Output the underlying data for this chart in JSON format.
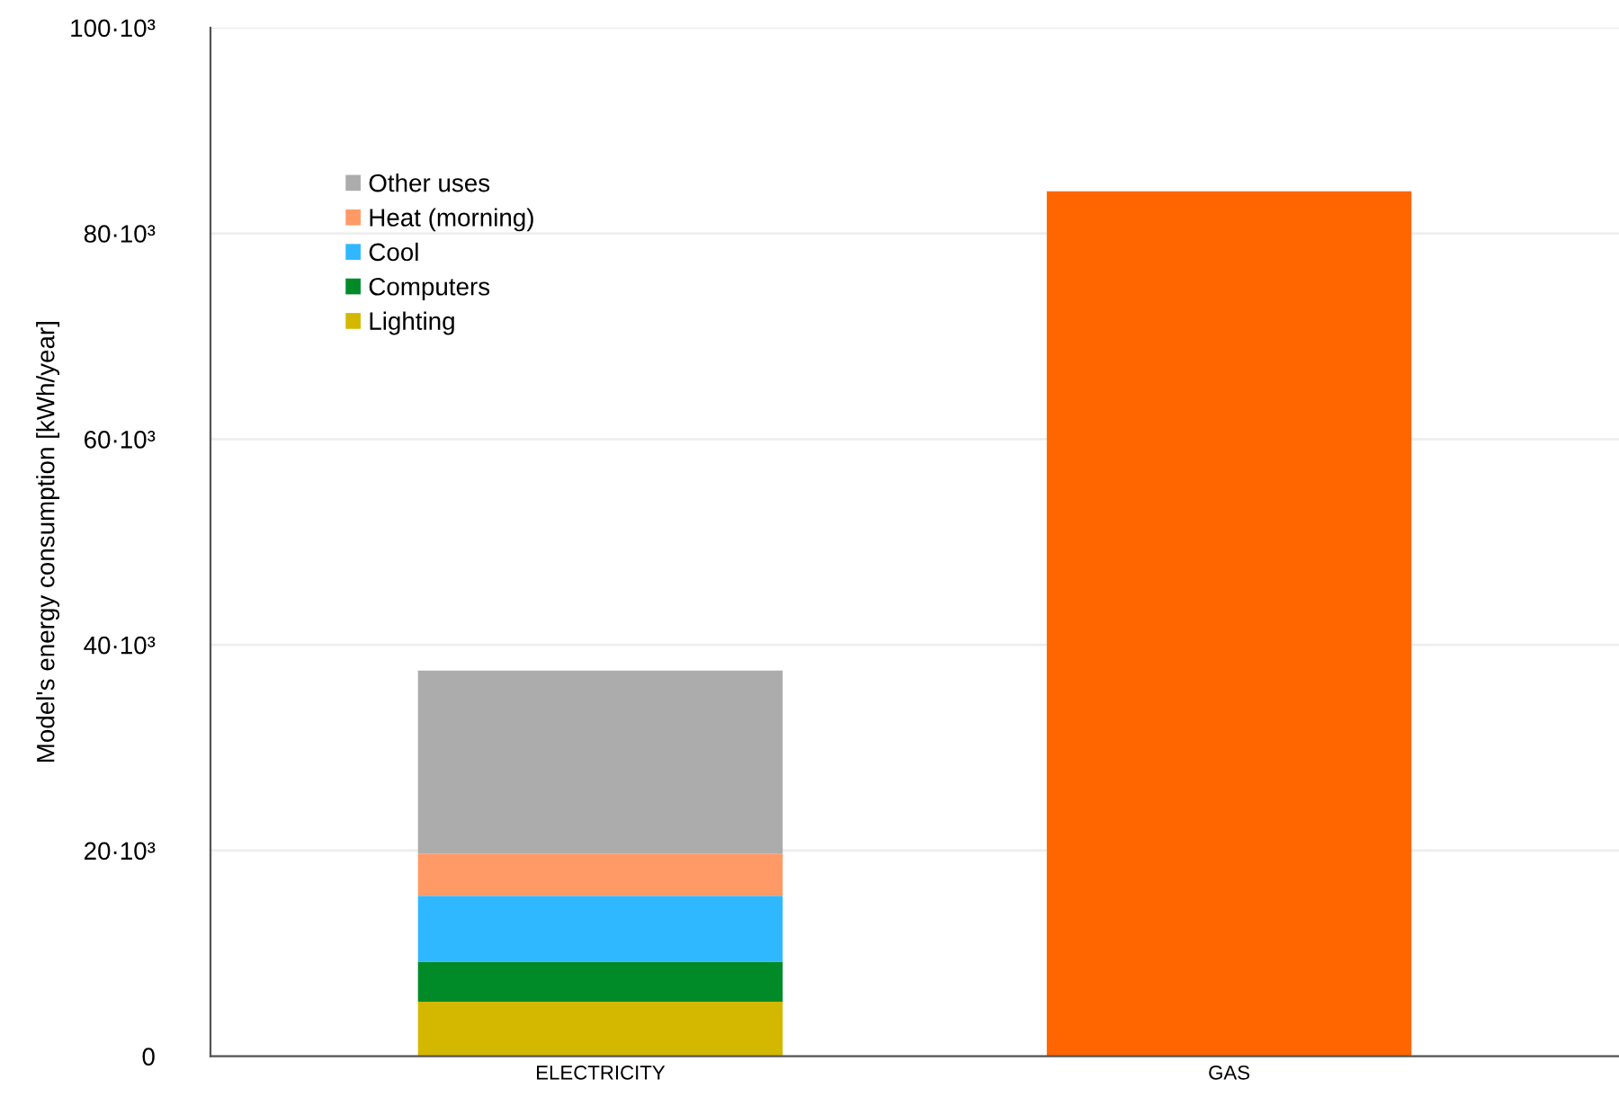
{
  "chart_data": {
    "type": "bar",
    "stacked": true,
    "ylabel": "Model's energy consumption [kWh/year]",
    "categories": [
      "ELECTRICITY",
      "GAS"
    ],
    "series": [
      {
        "name": "Lighting",
        "color": "#d4b800",
        "values": [
          5300,
          null
        ]
      },
      {
        "name": "Computers",
        "color": "#008a28",
        "values": [
          3900,
          null
        ]
      },
      {
        "name": "Cool",
        "color": "#2fb8ff",
        "values": [
          6400,
          null
        ]
      },
      {
        "name": "Heat (morning)",
        "color": "#ff9a66",
        "values": [
          4100,
          null
        ]
      },
      {
        "name": "Other uses",
        "color": "#acacac",
        "values": [
          17800,
          null
        ]
      },
      {
        "color": "#ff6600",
        "values": [
          null,
          84100
        ]
      }
    ],
    "ylim": [
      0,
      100000
    ],
    "yticks": [
      0,
      {
        "value": 20000,
        "label": "20·10³"
      },
      {
        "value": 40000,
        "label": "40·10³"
      },
      {
        "value": 60000,
        "label": "60·10³"
      },
      {
        "value": 80000,
        "label": "80·10³"
      },
      {
        "value": 100000,
        "label": "100·10³"
      }
    ],
    "grid": "y",
    "legend": "top left"
  }
}
